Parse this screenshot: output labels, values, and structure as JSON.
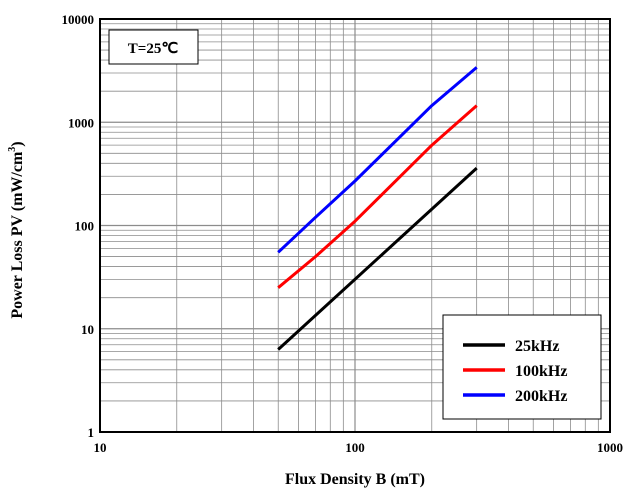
{
  "chart_data": {
    "type": "line",
    "xscale": "log",
    "yscale": "log",
    "xlim": [
      10,
      1000
    ],
    "ylim": [
      1,
      10000
    ],
    "xlabel": "Flux Density B (mT)",
    "ylabel": "Power Loss PV (mW/cm",
    "ylabel_sup": "3",
    "ylabel_close": ")",
    "x_ticks": [
      10,
      100,
      1000
    ],
    "x_tick_labels": [
      "10",
      "100",
      "1000"
    ],
    "y_ticks": [
      1,
      10,
      100,
      1000,
      10000
    ],
    "y_tick_labels": [
      "1",
      "10",
      "100",
      "1000",
      "10000"
    ],
    "grid": true,
    "annotation": "T=25℃",
    "legend_position": "bottom-right",
    "series": [
      {
        "name": "25kHz",
        "color": "#000000",
        "x": [
          50,
          300
        ],
        "y": [
          6.3,
          360
        ]
      },
      {
        "name": "100kHz",
        "color": "#ff0000",
        "x": [
          50,
          70,
          100,
          200,
          300
        ],
        "y": [
          25,
          50,
          110,
          600,
          1450
        ]
      },
      {
        "name": "200kHz",
        "color": "#0000ff",
        "x": [
          50,
          70,
          100,
          200,
          300
        ],
        "y": [
          55,
          120,
          270,
          1450,
          3400
        ]
      }
    ]
  }
}
